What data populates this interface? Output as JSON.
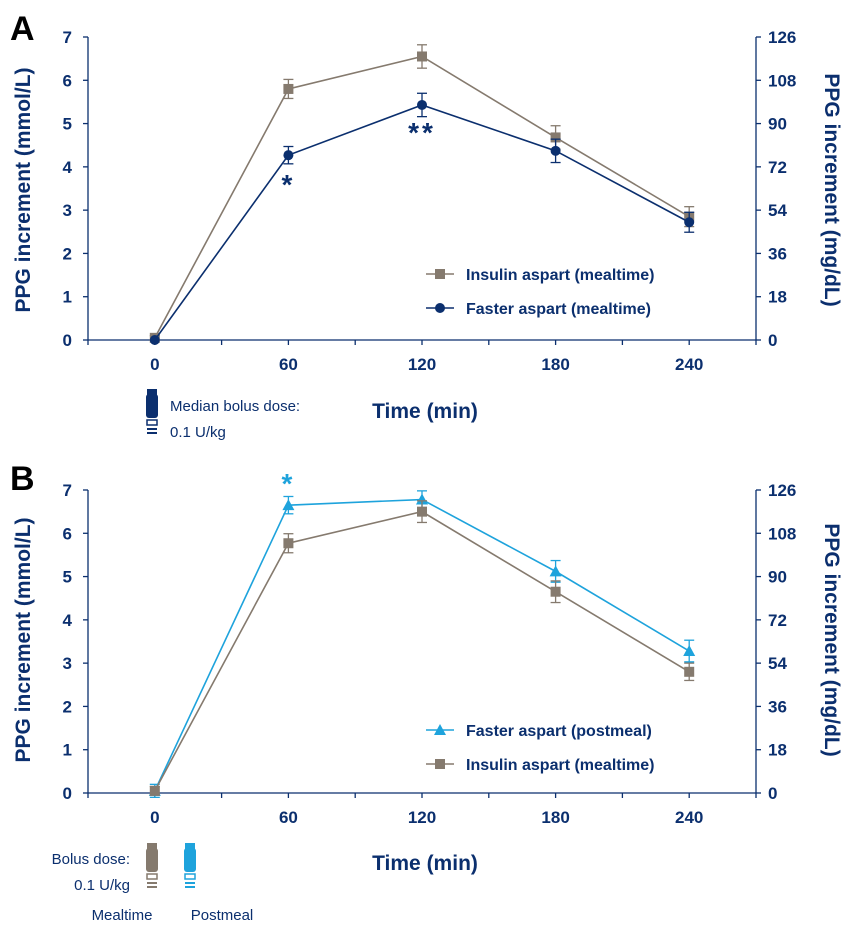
{
  "colors": {
    "axis": "#0b2f6e",
    "insulin_aspart_mealtime": "#857a6e",
    "faster_aspart_mealtime": "#0b2f6e",
    "faster_aspart_postmeal": "#1ea3dc"
  },
  "chart_data": [
    {
      "panel": "A",
      "type": "line",
      "xlabel": "Time (min)",
      "ylabel": "PPG increment (mmol/L)",
      "ylabel_right": "PPG increment (mg/dL)",
      "x": [
        0,
        60,
        120,
        180,
        240
      ],
      "xticks": [
        0,
        60,
        120,
        180,
        240
      ],
      "xlim": [
        -30,
        270
      ],
      "ylim": [
        0,
        7
      ],
      "yticks": [
        0,
        1,
        2,
        3,
        4,
        5,
        6,
        7
      ],
      "yticks_right": [
        0,
        18,
        36,
        54,
        72,
        90,
        108,
        126
      ],
      "legend_position": "bottom-right",
      "series": [
        {
          "name": "Insulin aspart (mealtime)",
          "marker": "square",
          "color": "#857a6e",
          "values": [
            0.05,
            5.8,
            6.55,
            4.68,
            2.85
          ],
          "err": [
            0.05,
            0.22,
            0.27,
            0.27,
            0.23
          ]
        },
        {
          "name": "Faster aspart (mealtime)",
          "marker": "circle",
          "color": "#0b2f6e",
          "values": [
            0.0,
            4.27,
            5.43,
            4.37,
            2.72
          ],
          "err": [
            0.0,
            0.2,
            0.27,
            0.27,
            0.23
          ]
        }
      ],
      "annotations": [
        {
          "text": "*",
          "x": 60,
          "y": 3.7,
          "color": "#0b2f6e"
        },
        {
          "text": "**",
          "x": 120,
          "y": 4.9,
          "color": "#0b2f6e"
        }
      ],
      "dose_note": {
        "line1": "Median bolus dose:",
        "line2": "0.1 U/kg"
      }
    },
    {
      "panel": "B",
      "type": "line",
      "xlabel": "Time (min)",
      "ylabel": "PPG increment (mmol/L)",
      "ylabel_right": "PPG increment (mg/dL)",
      "x": [
        0,
        60,
        120,
        180,
        240
      ],
      "xticks": [
        0,
        60,
        120,
        180,
        240
      ],
      "xlim": [
        -30,
        270
      ],
      "ylim": [
        0,
        7
      ],
      "yticks": [
        0,
        1,
        2,
        3,
        4,
        5,
        6,
        7
      ],
      "yticks_right": [
        0,
        18,
        36,
        54,
        72,
        90,
        108,
        126
      ],
      "legend_position": "bottom-right",
      "series": [
        {
          "name": "Faster aspart (postmeal)",
          "marker": "triangle",
          "color": "#1ea3dc",
          "values": [
            0.05,
            6.65,
            6.78,
            5.12,
            3.28
          ],
          "err": [
            0.15,
            0.2,
            0.2,
            0.25,
            0.25
          ]
        },
        {
          "name": "Insulin aspart (mealtime)",
          "marker": "square",
          "color": "#857a6e",
          "values": [
            0.05,
            5.77,
            6.5,
            4.65,
            2.8
          ],
          "err": [
            0.1,
            0.22,
            0.25,
            0.25,
            0.2
          ]
        }
      ],
      "annotations": [
        {
          "text": "*",
          "x": 60,
          "y": 7.25,
          "color": "#1ea3dc"
        }
      ],
      "dose_note": {
        "line1": "Bolus dose:",
        "line2": "0.1 U/kg",
        "pen1_label": "Mealtime",
        "pen2_label": "Postmeal"
      }
    }
  ]
}
